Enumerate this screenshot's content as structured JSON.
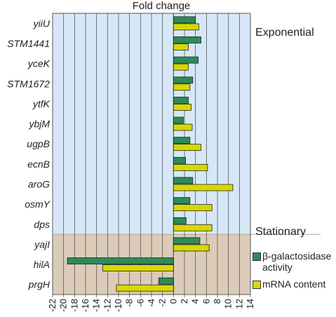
{
  "chart_data": {
    "type": "bar",
    "orientation": "horizontal",
    "title": "Fold change",
    "categories": [
      "yiiU",
      "STM1441",
      "yceK",
      "STM1672",
      "ytfK",
      "ybjM",
      "ugpB",
      "ecnB",
      "aroG",
      "osmY",
      "dps",
      "yajI",
      "hilA",
      "prgH"
    ],
    "series": [
      {
        "name": "β-galactosidase activity",
        "color": "#2e8b57",
        "values": [
          4.0,
          5.0,
          4.5,
          3.5,
          2.7,
          1.8,
          3.0,
          2.2,
          3.5,
          3.0,
          2.3,
          4.8,
          -19.3,
          -2.7
        ]
      },
      {
        "name": "mRNA content",
        "color": "#d8d800",
        "values": [
          4.6,
          2.7,
          2.7,
          3.0,
          3.2,
          3.4,
          5.0,
          6.2,
          10.8,
          7.0,
          7.0,
          6.5,
          -12.9,
          -10.4
        ]
      }
    ],
    "xlim": [
      -22,
      14
    ],
    "xticks": [
      -22,
      -20,
      -18,
      -16,
      -14,
      -12,
      -10,
      -8,
      -6,
      -4,
      -2,
      0,
      2,
      4,
      6,
      8,
      10,
      12,
      14
    ],
    "regions": [
      {
        "label": "Exponential",
        "from_index": 0,
        "to_index": 10,
        "color": "#d6e8f7"
      },
      {
        "label": "Stationary",
        "from_index": 11,
        "to_index": 13,
        "color": "#dccbb8"
      }
    ],
    "grid": "vertical",
    "legend_position": "right"
  }
}
